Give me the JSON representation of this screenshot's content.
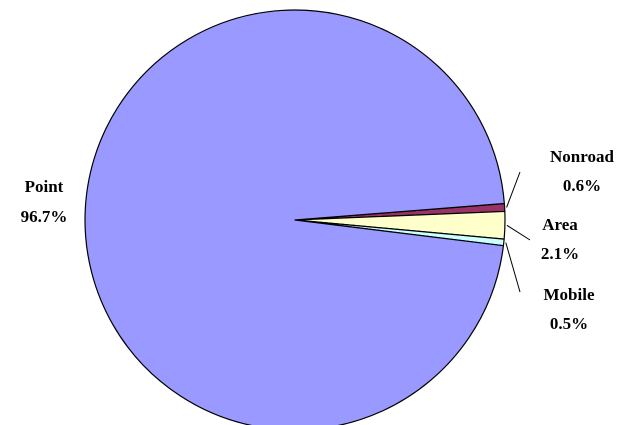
{
  "chart_data": {
    "type": "pie",
    "title": "",
    "slices": [
      {
        "label": "Nonroad",
        "value": 0.6,
        "value_text": "0.6%",
        "color": "#993366"
      },
      {
        "label": "Area",
        "value": 2.1,
        "value_text": "2.1%",
        "color": "#ffffcc"
      },
      {
        "label": "Mobile",
        "value": 0.5,
        "value_text": "0.5%",
        "color": "#ccffff"
      },
      {
        "label": "Point",
        "value": 96.7,
        "value_text": "96.7%",
        "color": "#9999ff"
      }
    ],
    "start_angle_deg": -4.5,
    "direction": "clockwise",
    "outline_color": "#000000",
    "legend": "none",
    "labels_outside": true
  }
}
